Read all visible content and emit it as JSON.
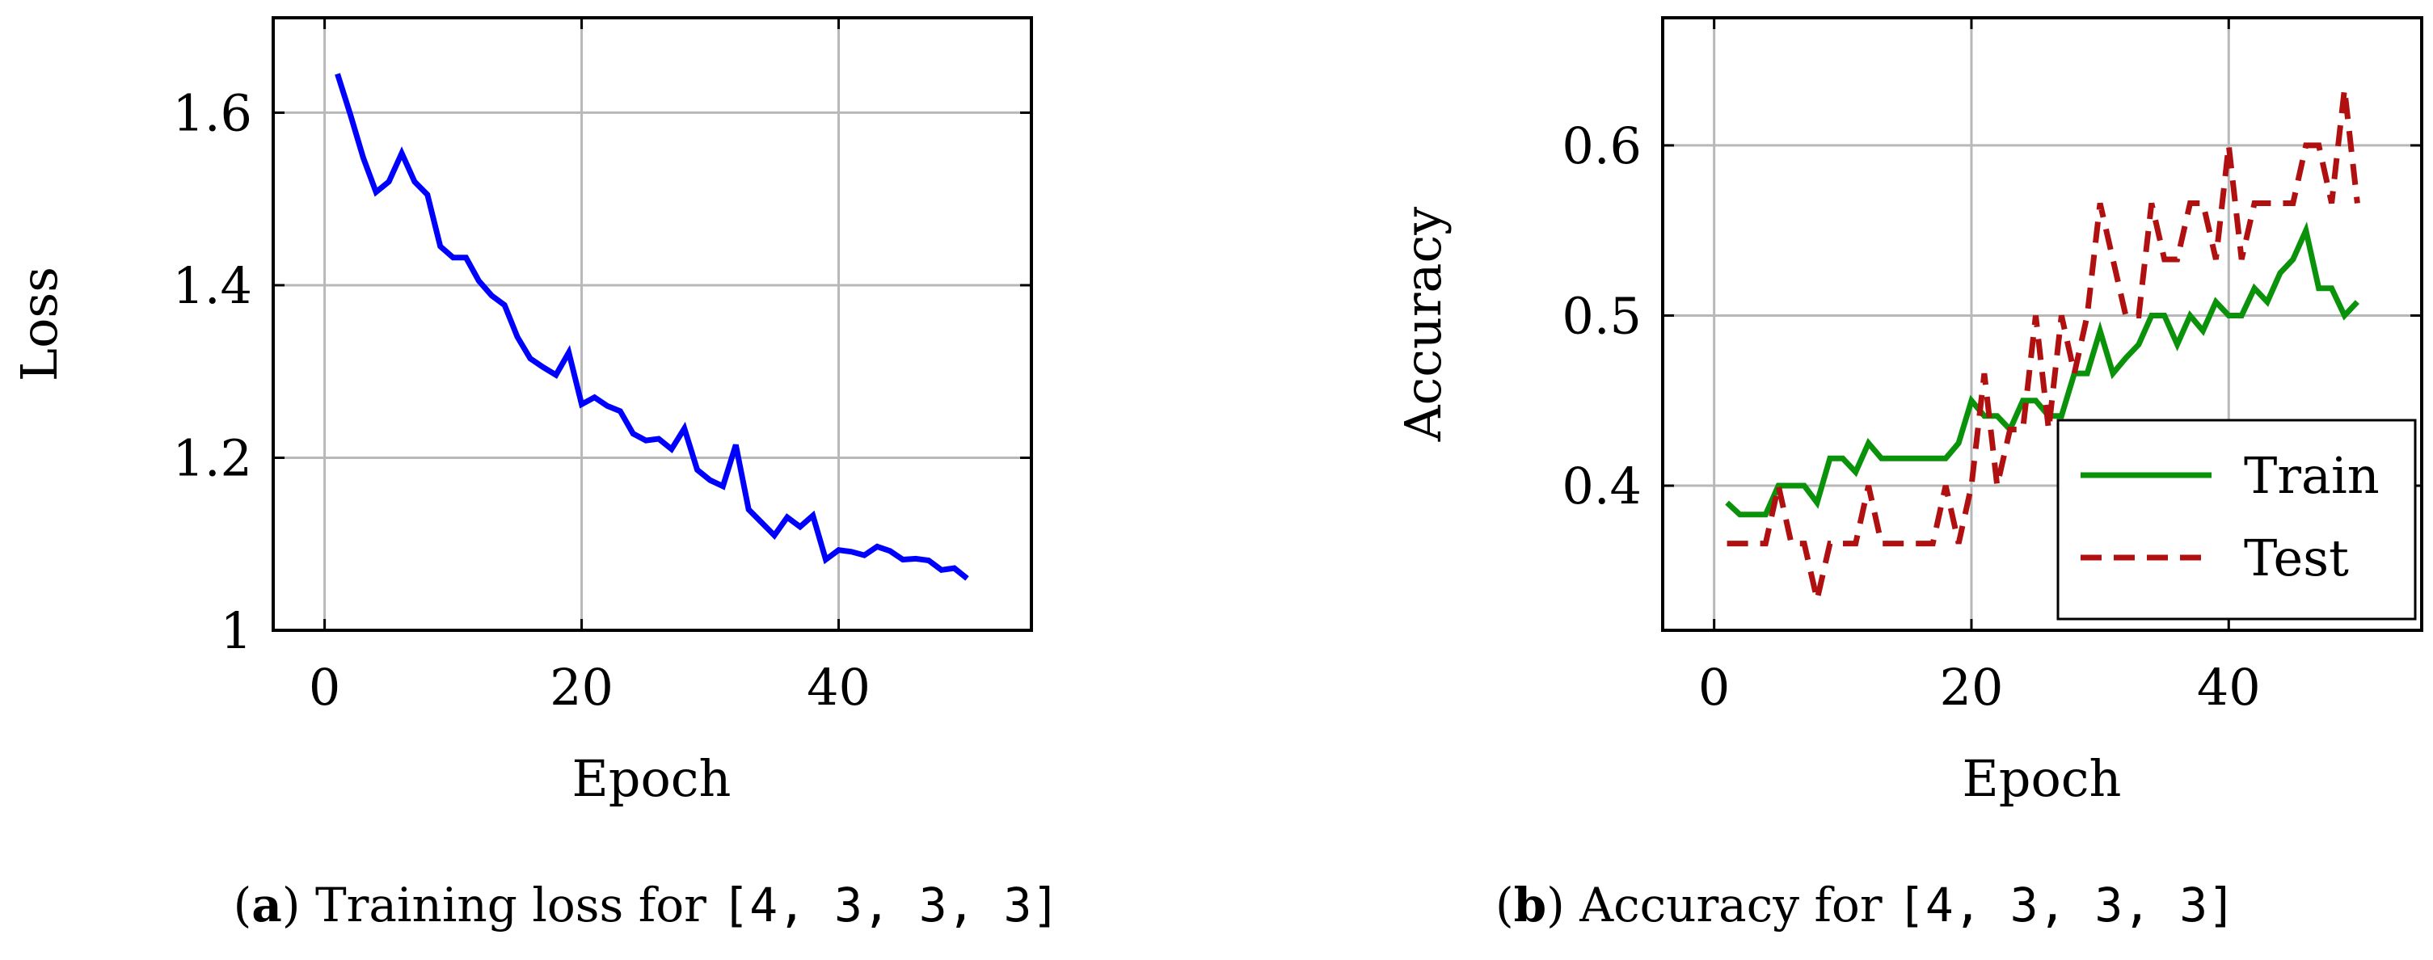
{
  "chart_data": [
    {
      "id": "a",
      "type": "line",
      "xlabel": "Epoch",
      "ylabel": "Loss",
      "xlim": [
        -4,
        55
      ],
      "ylim": [
        1.0,
        1.71
      ],
      "xticks": [
        0,
        20,
        40
      ],
      "yticks": [
        1,
        1.2,
        1.4,
        1.6
      ],
      "ytick_labels": [
        "1",
        "1.2",
        "1.4",
        "1.6"
      ],
      "grid": true,
      "legend": "none",
      "series": [
        {
          "color": "#0000ff",
          "style": "solid",
          "x": [
            1,
            2,
            3,
            4,
            5,
            6,
            7,
            8,
            9,
            10,
            11,
            12,
            13,
            14,
            15,
            16,
            17,
            18,
            19,
            20,
            21,
            22,
            23,
            24,
            25,
            26,
            27,
            28,
            29,
            30,
            31,
            32,
            33,
            34,
            35,
            36,
            37,
            38,
            39,
            40,
            41,
            42,
            43,
            44,
            45,
            46,
            47,
            48,
            49,
            50
          ],
          "y": [
            1.645,
            1.598,
            1.548,
            1.508,
            1.52,
            1.553,
            1.52,
            1.505,
            1.445,
            1.432,
            1.432,
            1.405,
            1.388,
            1.377,
            1.34,
            1.315,
            1.305,
            1.296,
            1.322,
            1.262,
            1.27,
            1.26,
            1.254,
            1.228,
            1.22,
            1.222,
            1.21,
            1.234,
            1.186,
            1.174,
            1.167,
            1.215,
            1.14,
            1.125,
            1.11,
            1.131,
            1.12,
            1.133,
            1.082,
            1.093,
            1.091,
            1.087,
            1.097,
            1.092,
            1.082,
            1.083,
            1.081,
            1.07,
            1.072,
            1.06
          ]
        }
      ]
    },
    {
      "id": "b",
      "type": "line",
      "xlabel": "Epoch",
      "ylabel": "Accuracy",
      "xlim": [
        -4,
        55
      ],
      "ylim": [
        0.315,
        0.675
      ],
      "xticks": [
        0,
        20,
        40
      ],
      "yticks": [
        0.4,
        0.5,
        0.6
      ],
      "ytick_labels": [
        "0.4",
        "0.5",
        "0.6"
      ],
      "grid": true,
      "legend": "bottom-right",
      "series": [
        {
          "name": "Train",
          "color": "#0a930a",
          "style": "solid",
          "x": [
            1,
            2,
            3,
            4,
            5,
            6,
            7,
            8,
            9,
            10,
            11,
            12,
            13,
            14,
            15,
            16,
            17,
            18,
            19,
            20,
            21,
            22,
            23,
            24,
            25,
            26,
            27,
            28,
            29,
            30,
            31,
            32,
            33,
            34,
            35,
            36,
            37,
            38,
            39,
            40,
            41,
            42,
            43,
            44,
            45,
            46,
            47,
            48,
            49,
            50
          ],
          "y": [
            0.39,
            0.383,
            0.383,
            0.383,
            0.4,
            0.4,
            0.4,
            0.39,
            0.416,
            0.416,
            0.408,
            0.425,
            0.416,
            0.416,
            0.416,
            0.416,
            0.416,
            0.416,
            0.425,
            0.45,
            0.441,
            0.441,
            0.433,
            0.45,
            0.45,
            0.441,
            0.441,
            0.466,
            0.466,
            0.491,
            0.466,
            0.475,
            0.483,
            0.5,
            0.5,
            0.483,
            0.5,
            0.491,
            0.508,
            0.5,
            0.5,
            0.516,
            0.508,
            0.525,
            0.533,
            0.55,
            0.516,
            0.516,
            0.5,
            0.508
          ]
        },
        {
          "name": "Test",
          "color": "#b01010",
          "style": "dashed",
          "x": [
            1,
            2,
            3,
            4,
            5,
            6,
            7,
            8,
            9,
            10,
            11,
            12,
            13,
            14,
            15,
            16,
            17,
            18,
            19,
            20,
            21,
            22,
            23,
            24,
            25,
            26,
            27,
            28,
            29,
            30,
            31,
            32,
            33,
            34,
            35,
            36,
            37,
            38,
            39,
            40,
            41,
            42,
            43,
            44,
            45,
            46,
            47,
            48,
            49,
            50
          ],
          "y": [
            0.366,
            0.366,
            0.366,
            0.366,
            0.4,
            0.366,
            0.366,
            0.333,
            0.366,
            0.366,
            0.366,
            0.4,
            0.366,
            0.366,
            0.366,
            0.366,
            0.366,
            0.4,
            0.366,
            0.4,
            0.466,
            0.4,
            0.433,
            0.433,
            0.5,
            0.433,
            0.5,
            0.466,
            0.5,
            0.566,
            0.533,
            0.5,
            0.5,
            0.566,
            0.533,
            0.533,
            0.566,
            0.566,
            0.533,
            0.6,
            0.533,
            0.566,
            0.566,
            0.566,
            0.566,
            0.6,
            0.6,
            0.566,
            0.633,
            0.566
          ]
        }
      ]
    }
  ],
  "captions": [
    {
      "letter": "a",
      "text": " Training loss for ",
      "code": "[4, 3, 3, 3]"
    },
    {
      "letter": "b",
      "text": " Accuracy for ",
      "code": "[4, 3, 3, 3]"
    }
  ]
}
